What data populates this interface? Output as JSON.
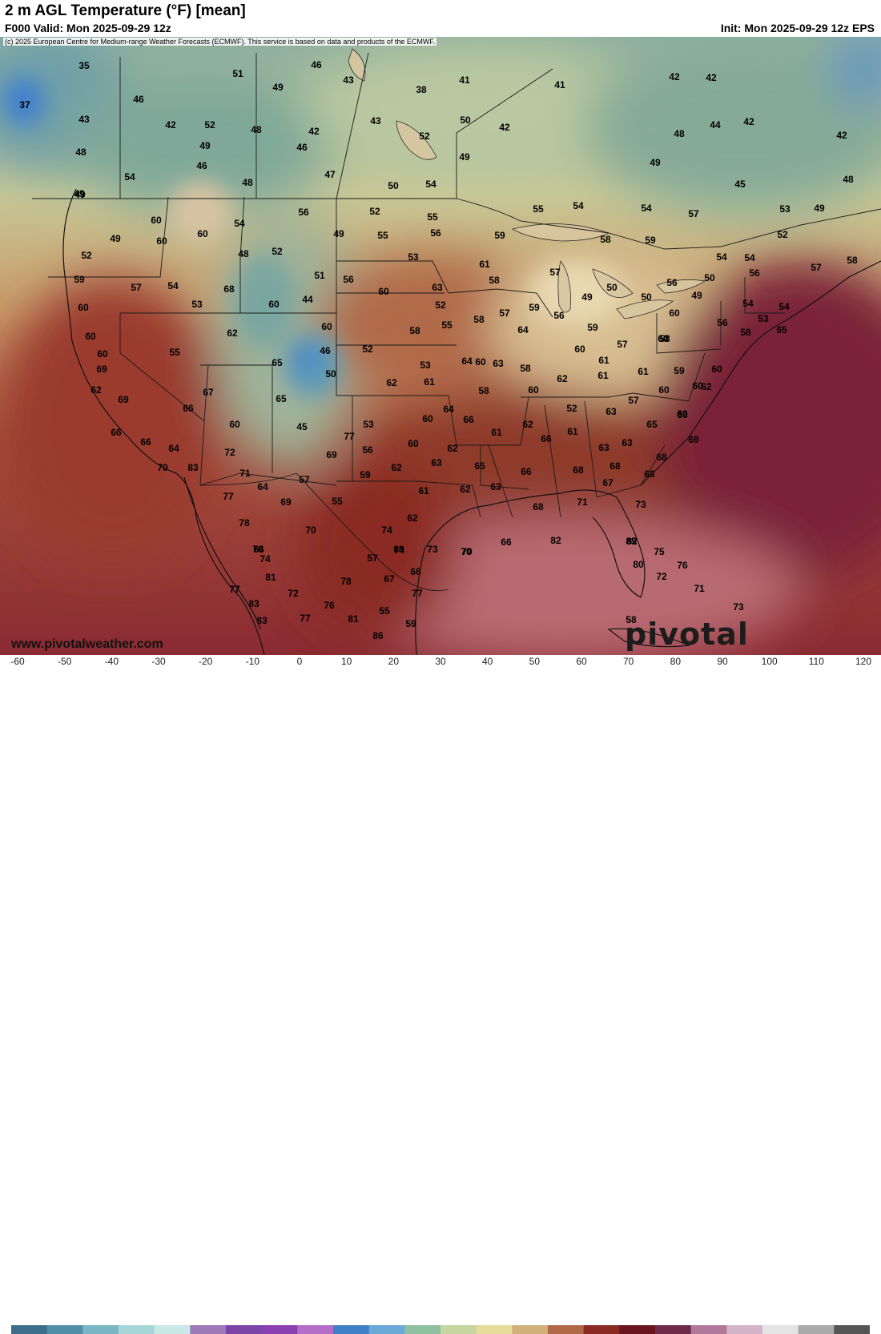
{
  "header": {
    "title": "2 m AGL Temperature (°F) [mean]",
    "valid": "F000 Valid: Mon 2025-09-29 12z",
    "init": "Init: Mon 2025-09-29 12z EPS",
    "copyright": "(c) 2025 European Centre for Medium-range Weather Forecasts (ECMWF). This service is based on data and products of the ECMWF."
  },
  "footer": {
    "website": "www.pivotalweather.com",
    "brand": "pivotal weather"
  },
  "legend": {
    "ticks": [
      "-60",
      "-50",
      "-40",
      "-30",
      "-20",
      "-10",
      "0",
      "10",
      "20",
      "30",
      "40",
      "50",
      "60",
      "70",
      "80",
      "90",
      "100",
      "110",
      "120"
    ],
    "colors": [
      "#3c6e8c",
      "#4f8fa8",
      "#7ab6c4",
      "#a7d6d8",
      "#c9e8e6",
      "#9e7ab8",
      "#7a45a6",
      "#8a3fb0",
      "#b46ec8",
      "#3f7fc8",
      "#6aa9d8",
      "#8fc0a0",
      "#c6d6a0",
      "#e6dc9a",
      "#d2b07a",
      "#b06a48",
      "#8a2a22",
      "#6a1420",
      "#6e2a48",
      "#b0789a",
      "#d4b4c8",
      "#e4e4e4",
      "#aaaaaa",
      "#555555"
    ]
  },
  "values": [
    {
      "t": "35"
    },
    {
      "t": "51"
    },
    {
      "t": "46"
    },
    {
      "t": "43"
    },
    {
      "t": "49"
    },
    {
      "t": "38"
    },
    {
      "t": "41"
    },
    {
      "t": "41"
    },
    {
      "t": "42"
    },
    {
      "t": "42"
    },
    {
      "t": "37"
    },
    {
      "t": "46"
    },
    {
      "t": "43"
    },
    {
      "t": "42"
    },
    {
      "t": "52"
    },
    {
      "t": "48"
    },
    {
      "t": "42"
    },
    {
      "t": "43"
    },
    {
      "t": "50"
    },
    {
      "t": "42"
    },
    {
      "t": "44"
    },
    {
      "t": "42"
    },
    {
      "t": "42"
    },
    {
      "t": "48"
    },
    {
      "t": "49"
    },
    {
      "t": "46"
    },
    {
      "t": "52"
    },
    {
      "t": "49"
    },
    {
      "t": "48"
    },
    {
      "t": "49"
    },
    {
      "t": "54"
    },
    {
      "t": "46"
    },
    {
      "t": "47"
    },
    {
      "t": "50"
    },
    {
      "t": "54"
    },
    {
      "t": "45"
    },
    {
      "t": "48"
    },
    {
      "t": "49"
    },
    {
      "t": "49"
    },
    {
      "t": "48"
    },
    {
      "t": "56"
    },
    {
      "t": "52"
    },
    {
      "t": "55"
    },
    {
      "t": "54"
    },
    {
      "t": "55"
    },
    {
      "t": "54"
    },
    {
      "t": "57"
    },
    {
      "t": "53"
    },
    {
      "t": "49"
    },
    {
      "t": "49"
    },
    {
      "t": "60"
    },
    {
      "t": "54"
    },
    {
      "t": "49"
    },
    {
      "t": "55"
    },
    {
      "t": "56"
    },
    {
      "t": "59"
    },
    {
      "t": "58"
    },
    {
      "t": "59"
    },
    {
      "t": "52"
    },
    {
      "t": "52"
    },
    {
      "t": "60"
    },
    {
      "t": "60"
    },
    {
      "t": "48"
    },
    {
      "t": "52"
    },
    {
      "t": "53"
    },
    {
      "t": "61"
    },
    {
      "t": "54"
    },
    {
      "t": "54"
    },
    {
      "t": "57"
    },
    {
      "t": "58"
    },
    {
      "t": "59"
    },
    {
      "t": "57"
    },
    {
      "t": "54"
    },
    {
      "t": "68"
    },
    {
      "t": "51"
    },
    {
      "t": "56"
    },
    {
      "t": "60"
    },
    {
      "t": "63"
    },
    {
      "t": "58"
    },
    {
      "t": "57"
    },
    {
      "t": "50"
    },
    {
      "t": "49"
    },
    {
      "t": "50"
    },
    {
      "t": "56"
    },
    {
      "t": "60"
    },
    {
      "t": "53"
    },
    {
      "t": "60"
    },
    {
      "t": "44"
    },
    {
      "t": "52"
    },
    {
      "t": "57"
    },
    {
      "t": "59"
    },
    {
      "t": "56"
    },
    {
      "t": "56"
    },
    {
      "t": "50"
    },
    {
      "t": "54"
    },
    {
      "t": "54"
    },
    {
      "t": "60"
    },
    {
      "t": "62"
    },
    {
      "t": "60"
    },
    {
      "t": "55"
    },
    {
      "t": "58"
    },
    {
      "t": "64"
    },
    {
      "t": "59"
    },
    {
      "t": "57"
    },
    {
      "t": "60"
    },
    {
      "t": "49"
    },
    {
      "t": "56"
    },
    {
      "t": "53"
    },
    {
      "t": "60"
    },
    {
      "t": "55"
    },
    {
      "t": "46"
    },
    {
      "t": "52"
    },
    {
      "t": "58"
    },
    {
      "t": "60"
    },
    {
      "t": "60"
    },
    {
      "t": "58"
    },
    {
      "t": "60"
    },
    {
      "t": "58"
    },
    {
      "t": "65"
    },
    {
      "t": "69"
    },
    {
      "t": "65"
    },
    {
      "t": "50"
    },
    {
      "t": "53"
    },
    {
      "t": "64"
    },
    {
      "t": "63"
    },
    {
      "t": "58"
    },
    {
      "t": "61"
    },
    {
      "t": "59"
    },
    {
      "t": "60"
    },
    {
      "t": "62"
    },
    {
      "t": "62"
    },
    {
      "t": "61"
    },
    {
      "t": "62"
    },
    {
      "t": "61"
    },
    {
      "t": "61"
    },
    {
      "t": "57"
    },
    {
      "t": "60"
    },
    {
      "t": "60"
    },
    {
      "t": "69"
    },
    {
      "t": "67"
    },
    {
      "t": "58"
    },
    {
      "t": "60"
    },
    {
      "t": "62"
    },
    {
      "t": "66"
    },
    {
      "t": "65"
    },
    {
      "t": "52"
    },
    {
      "t": "63"
    },
    {
      "t": "64"
    },
    {
      "t": "60"
    },
    {
      "t": "66"
    },
    {
      "t": "60"
    },
    {
      "t": "45"
    },
    {
      "t": "53"
    },
    {
      "t": "60"
    },
    {
      "t": "66"
    },
    {
      "t": "62"
    },
    {
      "t": "61"
    },
    {
      "t": "63"
    },
    {
      "t": "65"
    },
    {
      "t": "66"
    },
    {
      "t": "66"
    },
    {
      "t": "64"
    },
    {
      "t": "77"
    },
    {
      "t": "56"
    },
    {
      "t": "62"
    },
    {
      "t": "61"
    },
    {
      "t": "63"
    },
    {
      "t": "69"
    },
    {
      "t": "70"
    },
    {
      "t": "83"
    },
    {
      "t": "72"
    },
    {
      "t": "69"
    },
    {
      "t": "60"
    },
    {
      "t": "62"
    },
    {
      "t": "63"
    },
    {
      "t": "65"
    },
    {
      "t": "66"
    },
    {
      "t": "68"
    },
    {
      "t": "68"
    },
    {
      "t": "71"
    },
    {
      "t": "64"
    },
    {
      "t": "57"
    },
    {
      "t": "59"
    },
    {
      "t": "66"
    },
    {
      "t": "68"
    },
    {
      "t": "68"
    },
    {
      "t": "77"
    },
    {
      "t": "69"
    },
    {
      "t": "55"
    },
    {
      "t": "61"
    },
    {
      "t": "62"
    },
    {
      "t": "63"
    },
    {
      "t": "67"
    },
    {
      "t": "70"
    },
    {
      "t": "74"
    },
    {
      "t": "73"
    },
    {
      "t": "71"
    },
    {
      "t": "73"
    },
    {
      "t": "78"
    },
    {
      "t": "70"
    },
    {
      "t": "62"
    },
    {
      "t": "66"
    },
    {
      "t": "68"
    },
    {
      "t": "66"
    },
    {
      "t": "74"
    },
    {
      "t": "70"
    },
    {
      "t": "82"
    },
    {
      "t": "82"
    },
    {
      "t": "74"
    },
    {
      "t": "57"
    },
    {
      "t": "69"
    },
    {
      "t": "70"
    },
    {
      "t": "85"
    },
    {
      "t": "75"
    },
    {
      "t": "80"
    },
    {
      "t": "76"
    },
    {
      "t": "81"
    },
    {
      "t": "78"
    },
    {
      "t": "67"
    },
    {
      "t": "66"
    },
    {
      "t": "72"
    },
    {
      "t": "77"
    },
    {
      "t": "72"
    },
    {
      "t": "77"
    },
    {
      "t": "71"
    },
    {
      "t": "83"
    },
    {
      "t": "76"
    },
    {
      "t": "55"
    },
    {
      "t": "59"
    },
    {
      "t": "73"
    },
    {
      "t": "83"
    },
    {
      "t": "77"
    },
    {
      "t": "81"
    },
    {
      "t": "58"
    },
    {
      "t": "86"
    },
    {
      "t": "59"
    }
  ]
}
